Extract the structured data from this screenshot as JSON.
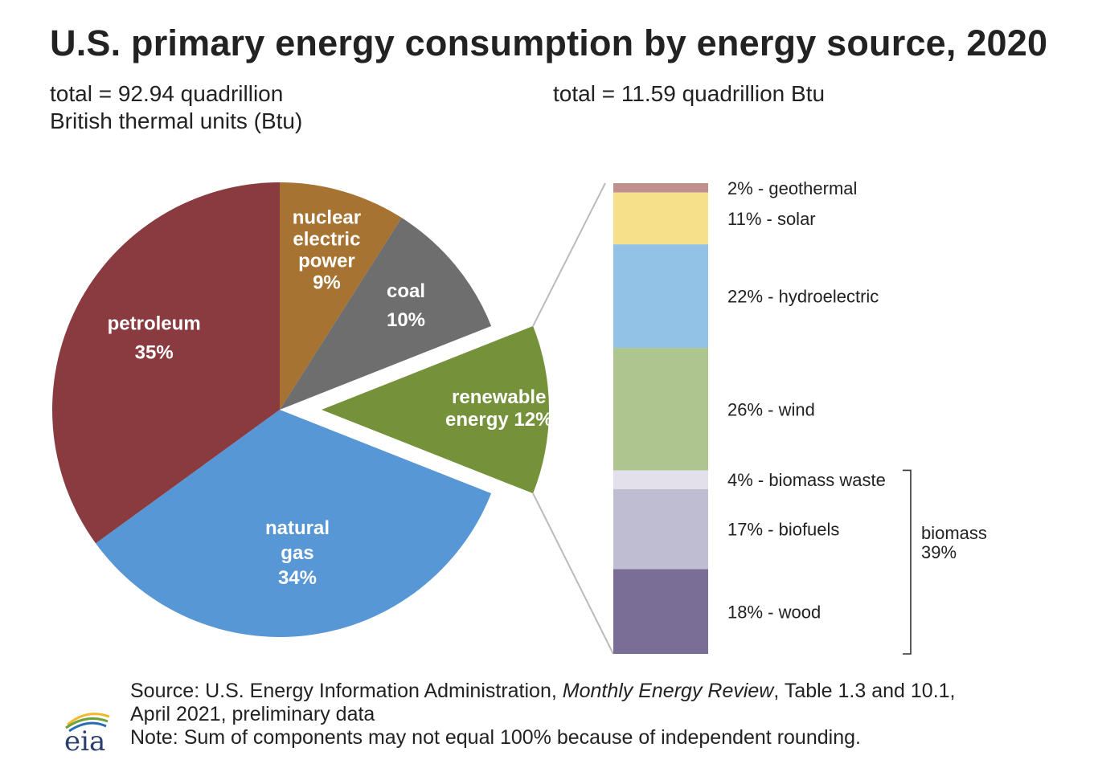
{
  "title": "U.S. primary energy consumption by energy source, 2020",
  "subtitle_left": {
    "line1": "total = 92.94 quadrillion",
    "line2": "British thermal units (Btu)"
  },
  "subtitle_right": "total = 11.59 quadrillion Btu",
  "chart_data": [
    {
      "type": "pie",
      "total_label": "total = 92.94 quadrillion British thermal units (Btu)",
      "slices": [
        {
          "name": "nuclear electric power",
          "value": 9,
          "label_lines": [
            "nuclear",
            "electric",
            "power",
            "9%"
          ],
          "color": "#A67332",
          "exploded": false
        },
        {
          "name": "coal",
          "value": 10,
          "label_lines": [
            "coal",
            "10%"
          ],
          "color": "#6E6E6E",
          "exploded": false
        },
        {
          "name": "renewable energy",
          "value": 12,
          "label_lines": [
            "renewable",
            "energy 12%"
          ],
          "color": "#75913A",
          "exploded": true
        },
        {
          "name": "natural gas",
          "value": 34,
          "label_lines": [
            "natural",
            "gas",
            "34%"
          ],
          "color": "#5797D5",
          "exploded": false
        },
        {
          "name": "petroleum",
          "value": 35,
          "label_lines": [
            "petroleum",
            "35%"
          ],
          "color": "#8A3B40",
          "exploded": false
        }
      ]
    },
    {
      "type": "bar",
      "stacked": true,
      "total_label": "total = 11.59 quadrillion Btu",
      "segments": [
        {
          "name": "geothermal",
          "value": 2,
          "label": "2% - geothermal",
          "color": "#C0908F"
        },
        {
          "name": "solar",
          "value": 11,
          "label": "11% - solar",
          "color": "#F6E08A"
        },
        {
          "name": "hydroelectric",
          "value": 22,
          "label": "22% - hydroelectric",
          "color": "#92C3E7"
        },
        {
          "name": "wind",
          "value": 26,
          "label": "26% - wind",
          "color": "#AFC590"
        },
        {
          "name": "biomass waste",
          "value": 4,
          "label": "4% - biomass waste",
          "color": "#E3E0EB"
        },
        {
          "name": "biofuels",
          "value": 17,
          "label": "17% - biofuels",
          "color": "#BFBDD2"
        },
        {
          "name": "wood",
          "value": 18,
          "label": "18% - wood",
          "color": "#7A6E97"
        }
      ],
      "bracket": {
        "label_lines": [
          "biomass",
          "39%"
        ],
        "covers": [
          "biomass waste",
          "biofuels",
          "wood"
        ]
      }
    }
  ],
  "footer": {
    "source_prefix": "Source: U.S. Energy Information Administration, ",
    "source_italic": "Monthly Energy Review",
    "source_suffix": ", Table 1.3 and 10.1,",
    "source_line2": "April 2021, preliminary data",
    "note": "Note: Sum of components may not equal 100% because of independent rounding."
  },
  "logo": {
    "text": "eia",
    "icon": "eia-logo-icon"
  }
}
